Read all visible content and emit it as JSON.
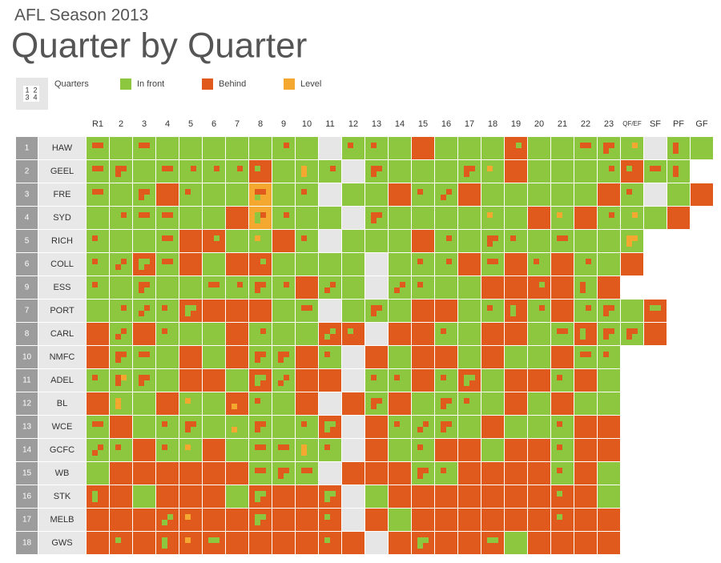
{
  "header": {
    "title": "AFL Season 2013",
    "subtitle": "Quarter by Quarter"
  },
  "legend": {
    "quarters_label": "Quarters",
    "quarter_digits": [
      "1",
      "2",
      "3",
      "4"
    ],
    "items": [
      {
        "label": "In front",
        "color": "#8dc63f"
      },
      {
        "label": "Behind",
        "color": "#e05a1e"
      },
      {
        "label": "Level",
        "color": "#f5a830"
      }
    ],
    "bye_color": "#e6e6e6"
  },
  "columns": [
    "R1",
    "2",
    "3",
    "4",
    "5",
    "6",
    "7",
    "8",
    "9",
    "10",
    "11",
    "12",
    "13",
    "14",
    "15",
    "16",
    "17",
    "18",
    "19",
    "20",
    "21",
    "22",
    "23",
    "QF/EF",
    "SF",
    "PF",
    "GF"
  ],
  "rows": [
    {
      "rank": 1,
      "team": "HAW",
      "cells": [
        "1100",
        "0000",
        "1100",
        "0000",
        "0000",
        "0000",
        "0000",
        "0000",
        "0100",
        "0000",
        null,
        "1000",
        "1000",
        "0000",
        "1111",
        "0000",
        "0000",
        "0000",
        "1011",
        "0000",
        "0000",
        "1100",
        "1110",
        "0200",
        null,
        "1010",
        "0000"
      ]
    },
    {
      "rank": 2,
      "team": "GEEL",
      "cells": [
        "1100",
        "1110",
        "0000",
        "1100",
        "0100",
        "0100",
        "0100",
        "0111",
        "0000",
        "2020",
        "0100",
        null,
        "1110",
        "0000",
        "0000",
        "0000",
        "1110",
        "2000",
        "1111",
        "0000",
        "0000",
        "0000",
        "0100",
        "0111",
        "1100",
        "1010"
      ]
    },
    {
      "rank": 3,
      "team": "FRE",
      "cells": [
        "1100",
        "0000",
        "1110",
        "1111",
        "1000",
        "0000",
        "0000",
        "1102",
        "0000",
        "1000",
        null,
        "0000",
        "0000",
        "1111",
        "1000",
        "0110",
        "1111",
        "0000",
        "0000",
        "0000",
        "0000",
        "0000",
        "1111",
        "1000",
        null,
        "0000",
        "1111"
      ]
    },
    {
      "rank": 4,
      "team": "SYD",
      "cells": [
        "0000",
        "0100",
        "1100",
        "1100",
        "0000",
        "0000",
        "1111",
        "0102",
        "0100",
        "0000",
        "0000",
        null,
        "1110",
        "0000",
        "0000",
        "0000",
        "0000",
        "2000",
        "0000",
        "1111",
        "2000",
        "1111",
        "0100",
        "0200",
        "0000",
        "1111"
      ]
    },
    {
      "rank": 5,
      "team": "RICH",
      "cells": [
        "1000",
        "0000",
        "0000",
        "1100",
        "1111",
        "1011",
        "0000",
        "2000",
        "1111",
        "1000",
        null,
        "0000",
        "0000",
        "0000",
        "1111",
        "0100",
        "0000",
        "1110",
        "1000",
        "0000",
        "1100",
        "0000",
        "0000",
        "2220"
      ]
    },
    {
      "rank": 6,
      "team": "COLL",
      "cells": [
        "1000",
        "0110",
        "0001",
        "1100",
        "1111",
        "0000",
        "1111",
        "1011",
        "0000",
        "0000",
        "0000",
        "0000",
        null,
        "0000",
        "1000",
        "0100",
        "1111",
        "1100",
        "1111",
        "1000",
        "1111",
        "0100",
        "0000",
        "1111"
      ]
    },
    {
      "rank": 9,
      "team": "ESS",
      "cells": [
        "1000",
        "0000",
        "1110",
        "0000",
        "0000",
        "1100",
        "0100",
        "1110",
        "0100",
        "1111",
        "0110",
        "0000",
        null,
        "0110",
        "1000",
        "0000",
        "0000",
        "1111",
        "1111",
        "1011",
        "1111",
        "1010",
        "1111"
      ]
    },
    {
      "rank": 7,
      "team": "PORT",
      "cells": [
        "0000",
        "0100",
        "0110",
        "1000",
        "0001",
        "1111",
        "1111",
        "1111",
        "0000",
        "1100",
        null,
        "0000",
        "1110",
        "0000",
        "1111",
        "1111",
        "0000",
        "1000",
        "0101",
        "0100",
        "1111",
        "0100",
        "1110",
        "0000",
        "0011"
      ]
    },
    {
      "rank": 8,
      "team": "CARL",
      "cells": [
        "1111",
        "0110",
        "1111",
        "1000",
        "0000",
        "0000",
        "1111",
        "0100",
        "0000",
        "0000",
        "1001",
        "0111",
        null,
        "1111",
        "1111",
        "1000",
        "0000",
        "1111",
        "1111",
        "0000",
        "1100",
        "0101",
        "1110",
        "1110",
        "1111"
      ]
    },
    {
      "rank": 10,
      "team": "NMFC",
      "cells": [
        "1111",
        "1110",
        "1100",
        "0000",
        "1111",
        "0000",
        "1111",
        "1110",
        "1110",
        "1111",
        "1000",
        null,
        "1111",
        "0000",
        "1111",
        "1111",
        "0000",
        "1111",
        "0000",
        "0000",
        "1111",
        "1100",
        "1000"
      ]
    },
    {
      "rank": 11,
      "team": "ADEL",
      "cells": [
        "1000",
        "1210",
        "1110",
        "0000",
        "1111",
        "1111",
        "0000",
        "0001",
        "0110",
        "1111",
        "1111",
        null,
        "1000",
        "1000",
        "1111",
        "1000",
        "0001",
        "0000",
        "1111",
        "1111",
        "1000",
        "1111",
        "0000"
      ]
    },
    {
      "rank": 12,
      "team": "BL",
      "cells": [
        "1111",
        "2020",
        "0000",
        "1111",
        "2000",
        "0000",
        "1121",
        "1000",
        "0000",
        "1111",
        null,
        "1111",
        "1110",
        "1111",
        "0000",
        "1110",
        "1000",
        "0000",
        "1111",
        "0000",
        "1111",
        "0000",
        "0000"
      ]
    },
    {
      "rank": 13,
      "team": "WCE",
      "cells": [
        "1100",
        "1111",
        "0000",
        "1000",
        "1110",
        "0000",
        "0020",
        "1110",
        "0000",
        "1000",
        "0001",
        null,
        "1111",
        "1000",
        "0110",
        "1110",
        "0000",
        "1111",
        "0000",
        "0000",
        "1000",
        "1111",
        "1111"
      ]
    },
    {
      "rank": 14,
      "team": "GCFC",
      "cells": [
        "0110",
        "1000",
        "1111",
        "1000",
        "2000",
        "1111",
        "0000",
        "1100",
        "1100",
        "2020",
        "1000",
        null,
        "1111",
        "0000",
        "1000",
        "1111",
        "1111",
        "0000",
        "1111",
        "1111",
        "1000",
        "1111",
        "1111"
      ]
    },
    {
      "rank": 15,
      "team": "WB",
      "cells": [
        "0000",
        "1111",
        "1111",
        "1111",
        "1111",
        "1111",
        "1111",
        "1100",
        "1110",
        "1100",
        null,
        "1111",
        "1111",
        "1111",
        "1110",
        "1000",
        "1111",
        "1111",
        "1111",
        "1111",
        "1000",
        "1111",
        "0000"
      ]
    },
    {
      "rank": 16,
      "team": "STK",
      "cells": [
        "0101",
        "1111",
        "0000",
        "1111",
        "1111",
        "1111",
        "0000",
        "0001",
        "1111",
        "1111",
        "0001",
        null,
        "0000",
        "1111",
        "1111",
        "1111",
        "1111",
        "1111",
        "1111",
        "1111",
        "0111",
        "1111",
        "0000"
      ]
    },
    {
      "rank": 17,
      "team": "MELB",
      "cells": [
        "1111",
        "1111",
        "1111",
        "1001",
        "2111",
        "1111",
        "1111",
        "0001",
        "1111",
        "1111",
        "0111",
        null,
        "1111",
        "0000",
        "1111",
        "1111",
        "1111",
        "1111",
        "1111",
        "1111",
        "0111",
        "1111",
        "1111"
      ]
    },
    {
      "rank": 18,
      "team": "GWS",
      "cells": [
        "1111",
        "0111",
        "1111",
        "0101",
        "2111",
        "0011",
        "1111",
        "1111",
        "1111",
        "1111",
        "0111",
        "1111",
        null,
        "1111",
        "0001",
        "1111",
        "1111",
        "0011",
        "0000",
        "1111",
        "1111",
        "1111",
        "1111"
      ]
    }
  ]
}
